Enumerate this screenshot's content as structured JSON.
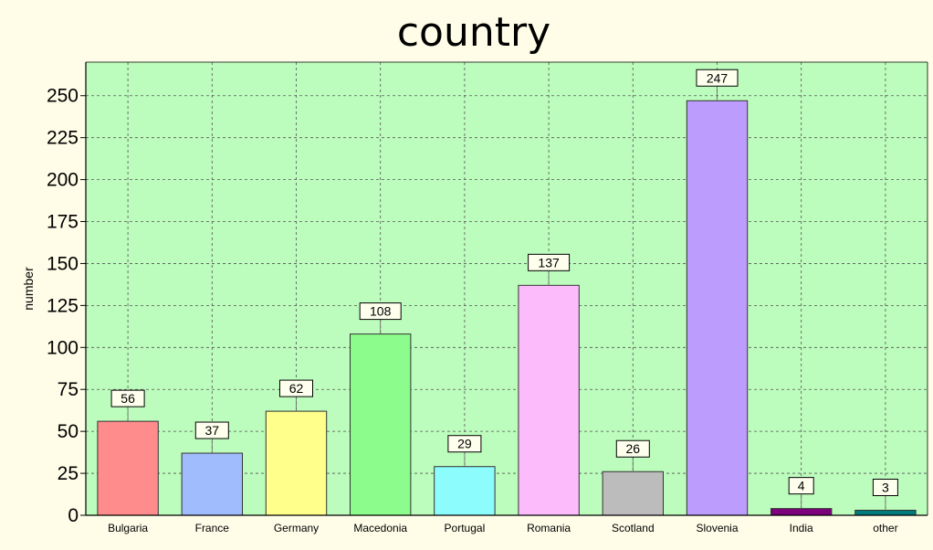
{
  "chart_data": {
    "type": "bar",
    "title": "country",
    "xlabel": "",
    "ylabel": "number",
    "ylim": [
      0,
      270
    ],
    "yticks": [
      0,
      25,
      50,
      75,
      100,
      125,
      150,
      175,
      200,
      225,
      250
    ],
    "grid": true,
    "categories": [
      "Bulgaria",
      "France",
      "Germany",
      "Macedonia",
      "Portugal",
      "Romania",
      "Scotland",
      "Slovenia",
      "India",
      "other"
    ],
    "values": [
      56,
      37,
      62,
      108,
      29,
      137,
      26,
      247,
      4,
      3
    ],
    "colors": [
      "#ff8c8c",
      "#a0bcfc",
      "#ffff8c",
      "#8cfc8c",
      "#8cfcfc",
      "#fcbcfc",
      "#bcbcbc",
      "#bc9cfc",
      "#7c007c",
      "#007c7c"
    ],
    "plot_background": "#bcfcbc",
    "page_background": "#fffde8"
  }
}
